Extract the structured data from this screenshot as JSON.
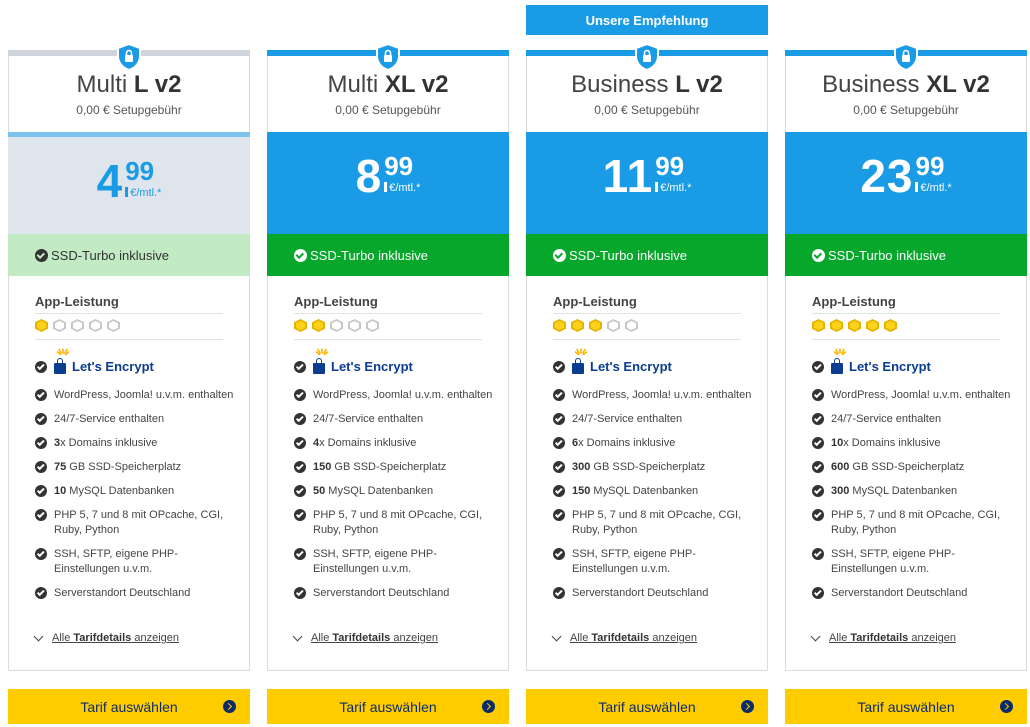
{
  "recommendation": "Unsere Empfehlung",
  "colors": {
    "accent": "#1a9be6",
    "green": "#07a72b",
    "button": "#ffcc00",
    "star": "#ffd21a"
  },
  "labels": {
    "ssd": "SSD-Turbo inklusive",
    "app_performance": "App-Leistung",
    "lets_encrypt": "Let's Encrypt",
    "wordpress": "WordPress, Joomla! u.v.m. enthalten",
    "service": "24/7-Service enthalten",
    "domains_suffix": "x Domains inklusive",
    "storage_suffix": " GB SSD-Speicherplatz",
    "db_suffix": " MySQL Datenbanken",
    "php": "PHP 5, 7 und 8 mit OPcache, CGI, Ruby, Python",
    "ssh": "SSH, SFTP, eigene PHP-Einstellungen u.v.m.",
    "location": "Serverstandort Deutschland",
    "details_pre": "Alle ",
    "details_bold": "Tarifdetails",
    "details_post": " anzeigen",
    "select": "Tarif auswählen",
    "unit": "€/mtl.*"
  },
  "plans": [
    {
      "name": "Multi",
      "size": "L v2",
      "setup": "0,00 € Setupgebühr",
      "price_euro": "4",
      "price_cent": "99",
      "rating": 1,
      "domains": "3",
      "storage": "75",
      "databases": "10"
    },
    {
      "name": "Multi",
      "size": "XL v2",
      "setup": "0,00 € Setupgebühr",
      "price_euro": "8",
      "price_cent": "99",
      "rating": 2,
      "domains": "4",
      "storage": "150",
      "databases": "50"
    },
    {
      "name": "Business",
      "size": "L v2",
      "setup": "0,00 € Setupgebühr",
      "price_euro": "11",
      "price_cent": "99",
      "rating": 3,
      "domains": "6",
      "storage": "300",
      "databases": "150"
    },
    {
      "name": "Business",
      "size": "XL v2",
      "setup": "0,00 € Setupgebühr",
      "price_euro": "23",
      "price_cent": "99",
      "rating": 5,
      "domains": "10",
      "storage": "600",
      "databases": "300"
    }
  ]
}
